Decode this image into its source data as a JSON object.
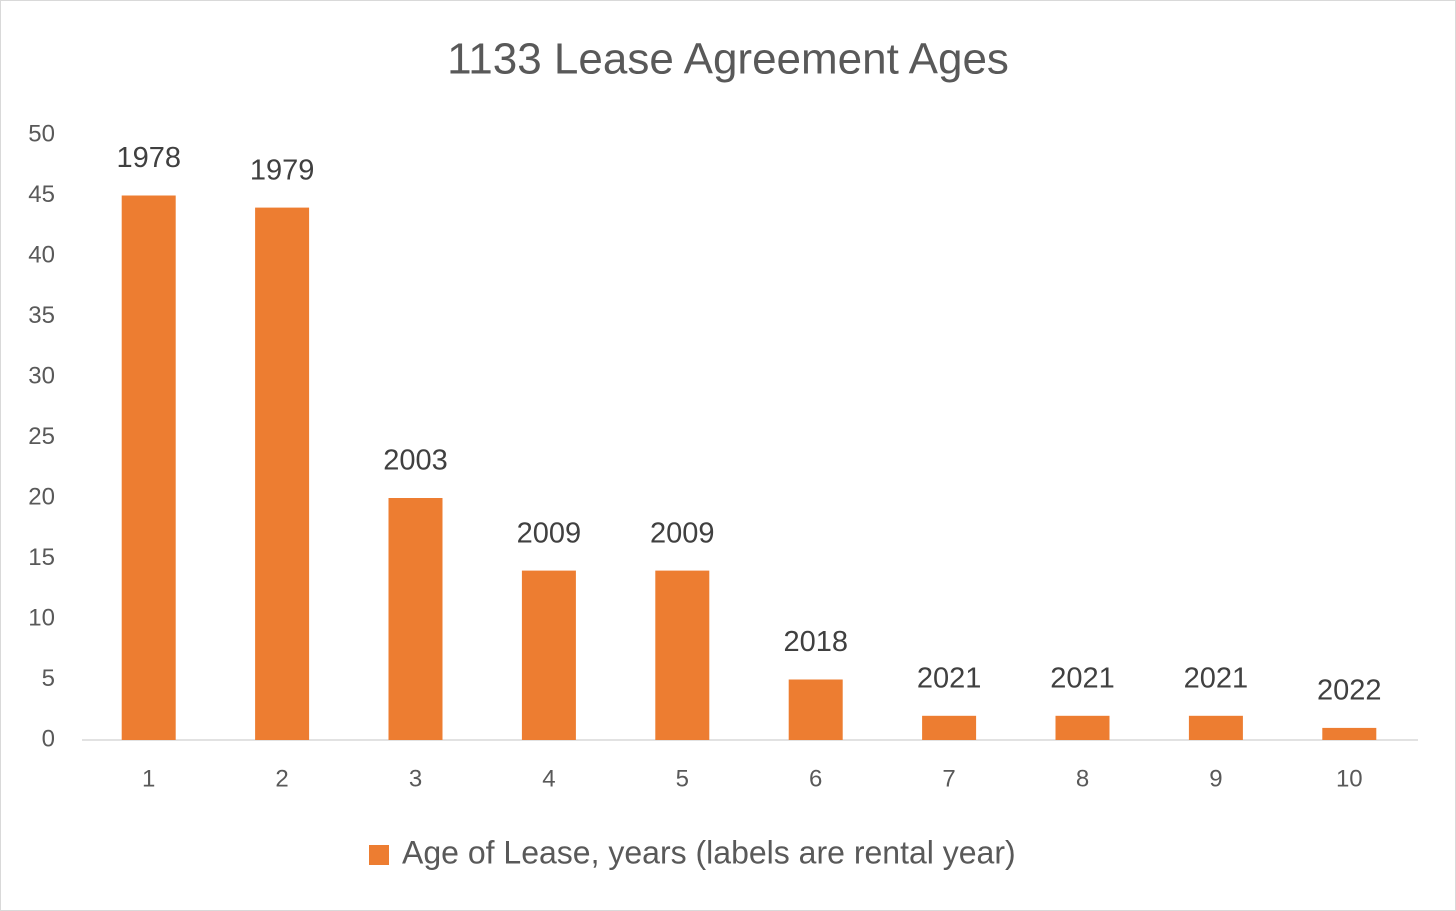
{
  "chart_data": {
    "type": "bar",
    "title": "1133 Lease Agreement Ages",
    "categories": [
      "1",
      "2",
      "3",
      "4",
      "5",
      "6",
      "7",
      "8",
      "9",
      "10"
    ],
    "series": [
      {
        "name": "Age of Lease, years (labels are rental year)",
        "color": "#ed7d31",
        "values": [
          45,
          44,
          20,
          14,
          14,
          5,
          2,
          2,
          2,
          1
        ]
      }
    ],
    "label_years": [
      "1978",
      "1979",
      "2003",
      "2009",
      "2009",
      "2018",
      "2021",
      "2021",
      "2021",
      "2022"
    ],
    "ylim": [
      0,
      50
    ],
    "yticks": [
      0,
      5,
      10,
      15,
      20,
      25,
      30,
      35,
      40,
      45,
      50
    ],
    "grid": false,
    "legend": "bottom"
  }
}
